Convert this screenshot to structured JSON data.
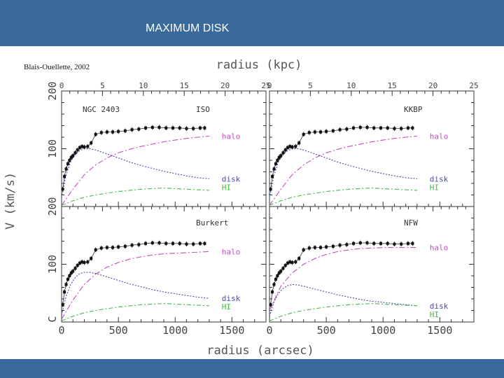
{
  "slide": {
    "title": "MAXIMUM DISK",
    "citation": "Blais-Ouellette, 2002"
  },
  "colors": {
    "bar": "#3a6a9c",
    "halo": "#c04fc0",
    "disk": "#4a4aa8",
    "hi": "#44bb44",
    "data": "#111111"
  },
  "chart_data": {
    "type": "line",
    "top_axis_label": "radius (kpc)",
    "xlabel": "radius (arcsec)",
    "ylabel": "V (km/s)",
    "xlim": [
      0,
      1800
    ],
    "ylim": [
      0,
      200
    ],
    "kpc_ticks": [
      "0",
      "5",
      "10",
      "15",
      "20",
      "25"
    ],
    "arcsec_ticks": [
      "0",
      "500",
      "1000",
      "1500"
    ],
    "y_ticks": [
      "100",
      "200"
    ],
    "y_zero_label": "C",
    "curve_labels": {
      "halo": "halo",
      "disk": "disk",
      "hi": "HI"
    },
    "observed_points": {
      "x": [
        10,
        25,
        40,
        55,
        70,
        85,
        100,
        120,
        140,
        160,
        180,
        200,
        230,
        260,
        300,
        350,
        400,
        450,
        500,
        560,
        620,
        680,
        740,
        800,
        860,
        920,
        980,
        1040,
        1100,
        1160,
        1220,
        1260
      ],
      "y": [
        30,
        52,
        65,
        74,
        80,
        85,
        88,
        93,
        98,
        102,
        104,
        103,
        104,
        110,
        125,
        128,
        129,
        129,
        130,
        131,
        133,
        134,
        136,
        137,
        137,
        136,
        136,
        136,
        135,
        135,
        136,
        136
      ]
    },
    "panels": [
      {
        "name": "NGC 2403",
        "model": "ISO",
        "halo": {
          "x": [
            0,
            100,
            200,
            300,
            400,
            500,
            600,
            700,
            800,
            900,
            1000,
            1100,
            1200,
            1300
          ],
          "y": [
            2,
            30,
            55,
            72,
            84,
            93,
            99,
            104,
            108,
            112,
            115,
            118,
            120,
            122
          ]
        },
        "disk": {
          "x": [
            0,
            40,
            80,
            120,
            160,
            200,
            250,
            300,
            400,
            500,
            600,
            700,
            800,
            900,
            1000,
            1100,
            1200,
            1300
          ],
          "y": [
            15,
            55,
            78,
            90,
            97,
            100,
            100,
            98,
            91,
            84,
            77,
            71,
            66,
            61,
            57,
            53,
            50,
            48
          ]
        },
        "hi": {
          "x": [
            0,
            100,
            200,
            300,
            400,
            500,
            600,
            700,
            800,
            900,
            1000,
            1100,
            1200,
            1300
          ],
          "y": [
            2,
            10,
            16,
            20,
            23,
            26,
            28,
            30,
            31,
            32,
            31,
            30,
            29,
            28
          ]
        }
      },
      {
        "name": "",
        "model": "KKBP",
        "halo": {
          "x": [
            0,
            100,
            200,
            300,
            400,
            500,
            600,
            700,
            800,
            900,
            1000,
            1100,
            1200,
            1300
          ],
          "y": [
            2,
            30,
            55,
            72,
            84,
            93,
            99,
            104,
            108,
            112,
            115,
            118,
            120,
            122
          ]
        },
        "disk": {
          "x": [
            0,
            40,
            80,
            120,
            160,
            200,
            250,
            300,
            400,
            500,
            600,
            700,
            800,
            900,
            1000,
            1100,
            1200,
            1300
          ],
          "y": [
            15,
            55,
            78,
            90,
            97,
            100,
            100,
            98,
            91,
            84,
            77,
            71,
            66,
            61,
            57,
            53,
            50,
            48
          ]
        },
        "hi": {
          "x": [
            0,
            100,
            200,
            300,
            400,
            500,
            600,
            700,
            800,
            900,
            1000,
            1100,
            1200,
            1300
          ],
          "y": [
            2,
            10,
            16,
            20,
            23,
            26,
            28,
            30,
            31,
            32,
            31,
            30,
            29,
            28
          ]
        }
      },
      {
        "name": "",
        "model": "Burkert",
        "halo": {
          "x": [
            0,
            100,
            200,
            300,
            400,
            500,
            600,
            700,
            800,
            900,
            1000,
            1100,
            1200,
            1300
          ],
          "y": [
            5,
            38,
            65,
            83,
            95,
            103,
            109,
            113,
            116,
            118,
            119,
            120,
            121,
            122
          ]
        },
        "disk": {
          "x": [
            0,
            40,
            80,
            120,
            160,
            200,
            250,
            300,
            400,
            500,
            600,
            700,
            800,
            900,
            1000,
            1100,
            1200,
            1300
          ],
          "y": [
            12,
            45,
            65,
            77,
            84,
            86,
            86,
            84,
            78,
            72,
            66,
            61,
            56,
            52,
            49,
            46,
            43,
            41
          ]
        },
        "hi": {
          "x": [
            0,
            100,
            200,
            300,
            400,
            500,
            600,
            700,
            800,
            900,
            1000,
            1100,
            1200,
            1300
          ],
          "y": [
            2,
            10,
            16,
            20,
            23,
            26,
            28,
            30,
            31,
            32,
            31,
            30,
            29,
            28
          ]
        }
      },
      {
        "name": "",
        "model": "NFW",
        "halo": {
          "x": [
            0,
            100,
            200,
            300,
            400,
            500,
            600,
            700,
            800,
            900,
            1000,
            1100,
            1200,
            1300
          ],
          "y": [
            20,
            62,
            85,
            100,
            110,
            117,
            122,
            125,
            127,
            128,
            129,
            129,
            129,
            129
          ]
        },
        "disk": {
          "x": [
            0,
            40,
            80,
            120,
            160,
            200,
            250,
            300,
            400,
            500,
            600,
            700,
            800,
            900,
            1000,
            1100,
            1200,
            1300
          ],
          "y": [
            10,
            35,
            50,
            58,
            63,
            65,
            64,
            62,
            57,
            52,
            47,
            43,
            39,
            36,
            34,
            32,
            30,
            28
          ]
        },
        "hi": {
          "x": [
            0,
            100,
            200,
            300,
            400,
            500,
            600,
            700,
            800,
            900,
            1000,
            1100,
            1200,
            1300
          ],
          "y": [
            2,
            10,
            16,
            20,
            23,
            26,
            28,
            30,
            31,
            32,
            31,
            30,
            29,
            28
          ]
        }
      }
    ]
  }
}
